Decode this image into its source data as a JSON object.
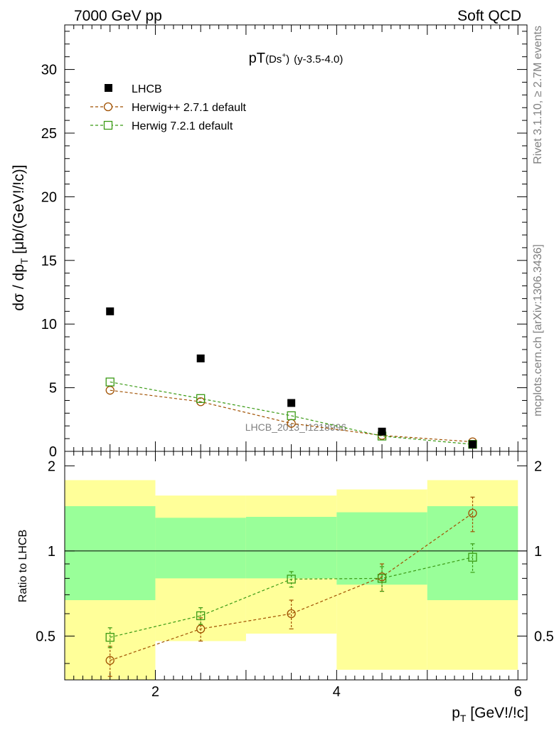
{
  "header": {
    "left": "7000 GeV pp",
    "right": "Soft QCD"
  },
  "side_texts": {
    "rivet": "Rivet 3.1.10, ≥ 2.7M events",
    "mcplots": "mcplots.cern.ch [arXiv:1306.3436]"
  },
  "plot_title": {
    "main": "pT",
    "species": "(Ds",
    "species_sup": "+",
    "species_close": ")",
    "range": "(y-3.5-4.0)"
  },
  "watermark": "LHCB_2013_I1218996",
  "chart_data": [
    {
      "type": "scatter",
      "panel": "main",
      "title": "pT(Ds+) (y-3.5-4.0)",
      "ylabel": "dσ / dp",
      "ylabel_sub": "T",
      "ylabel_units": " [μb/(GeV!/!c)]",
      "xlim": [
        1.0,
        6.1
      ],
      "ylim": [
        0,
        33.5
      ],
      "yticks": [
        0,
        5,
        10,
        15,
        20,
        25,
        30
      ],
      "ytick_labels": [
        "0",
        "5",
        "10",
        "15",
        "20",
        "25",
        "30"
      ],
      "x": [
        1.5,
        2.5,
        3.5,
        4.5,
        5.5
      ],
      "series": [
        {
          "name": "LHCB",
          "color": "#000000",
          "marker": "filled-square",
          "values": [
            11.0,
            7.3,
            3.8,
            1.55,
            0.55
          ]
        },
        {
          "name": "Herwig++ 2.7.1 default",
          "color": "#a05000",
          "marker": "open-circle",
          "values": [
            4.8,
            3.9,
            2.2,
            1.25,
            0.75
          ]
        },
        {
          "name": "Herwig 7.2.1 default",
          "color": "#3a9a14",
          "marker": "open-square",
          "values": [
            5.45,
            4.15,
            2.8,
            1.2,
            0.55
          ]
        }
      ]
    },
    {
      "type": "scatter",
      "panel": "ratio",
      "ylabel": "Ratio to LHCB",
      "xlabel": "p",
      "xlabel_sub": "T",
      "xlabel_units": " [GeV!/!c]",
      "xlim": [
        1.0,
        6.1
      ],
      "ylim": [
        0.35,
        2.25
      ],
      "yticks": [
        0.5,
        1,
        2
      ],
      "ytick_labels": [
        "0.5",
        "1",
        "2"
      ],
      "xticks": [
        2,
        4,
        6
      ],
      "xtick_labels": [
        "2",
        "4",
        "6"
      ],
      "bins": [
        [
          1,
          2
        ],
        [
          2,
          3
        ],
        [
          3,
          4
        ],
        [
          4,
          5
        ],
        [
          5,
          6
        ]
      ],
      "band_yellow": [
        [
          0.35,
          1.78
        ],
        [
          0.48,
          1.57
        ],
        [
          0.51,
          1.57
        ],
        [
          0.38,
          1.65
        ],
        [
          0.38,
          1.78
        ]
      ],
      "band_green": [
        [
          0.67,
          1.44
        ],
        [
          0.8,
          1.31
        ],
        [
          0.8,
          1.32
        ],
        [
          0.76,
          1.37
        ],
        [
          0.67,
          1.44
        ]
      ],
      "x": [
        1.5,
        2.5,
        3.5,
        4.5,
        5.5
      ],
      "series": [
        {
          "name": "Herwig++ 2.7.1 default",
          "color": "#a05000",
          "marker": "open-circle",
          "values": [
            0.41,
            0.53,
            0.6,
            0.81,
            1.36
          ],
          "err_low": [
            0.05,
            0.05,
            0.07,
            0.09,
            0.19
          ],
          "err_high": [
            0.05,
            0.05,
            0.07,
            0.09,
            0.19
          ]
        },
        {
          "name": "Herwig 7.2.1 default",
          "color": "#3a9a14",
          "marker": "open-square",
          "values": [
            0.495,
            0.59,
            0.795,
            0.8,
            0.95
          ],
          "err_low": [
            0.04,
            0.04,
            0.05,
            0.08,
            0.11
          ],
          "err_high": [
            0.04,
            0.04,
            0.05,
            0.08,
            0.11
          ]
        }
      ]
    }
  ]
}
